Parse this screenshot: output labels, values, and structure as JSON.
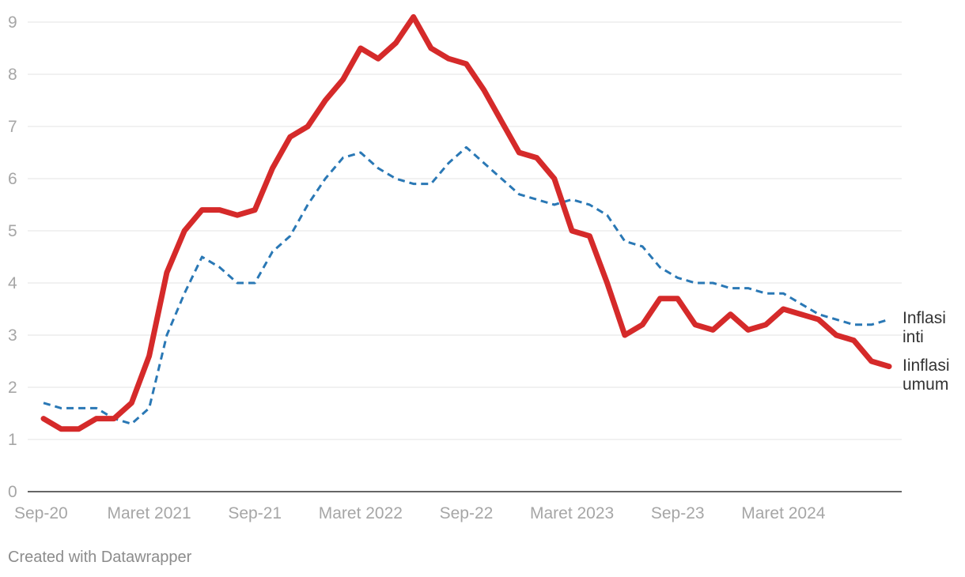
{
  "chart_data": {
    "type": "line",
    "title": "",
    "xlabel": "",
    "ylabel": "",
    "ylim": [
      0,
      9
    ],
    "y_ticks": [
      0,
      1,
      2,
      3,
      4,
      5,
      6,
      7,
      8,
      9
    ],
    "x_tick_labels": [
      {
        "index": 0,
        "label": "Sep-20"
      },
      {
        "index": 6,
        "label": "Maret 2021"
      },
      {
        "index": 12,
        "label": "Sep-21"
      },
      {
        "index": 18,
        "label": "Maret 2022"
      },
      {
        "index": 24,
        "label": "Sep-22"
      },
      {
        "index": 30,
        "label": "Maret 2023"
      },
      {
        "index": 36,
        "label": "Sep-23"
      },
      {
        "index": 42,
        "label": "Maret 2024"
      }
    ],
    "grid": true,
    "series": [
      {
        "name": "Iinflasi umum",
        "label_lines": [
          "Iinflasi",
          "umum"
        ],
        "color": "#d52a2a",
        "style": "solid",
        "values": [
          1.4,
          1.2,
          1.2,
          1.4,
          1.4,
          1.7,
          2.6,
          4.2,
          5.0,
          5.4,
          5.4,
          5.3,
          5.4,
          6.2,
          6.8,
          7.0,
          7.5,
          7.9,
          8.5,
          8.3,
          8.6,
          9.1,
          8.5,
          8.3,
          8.2,
          7.7,
          7.1,
          6.5,
          6.4,
          6.0,
          5.0,
          4.9,
          4.0,
          3.0,
          3.2,
          3.7,
          3.7,
          3.2,
          3.1,
          3.4,
          3.1,
          3.2,
          3.5,
          3.4,
          3.3,
          3.0,
          2.9,
          2.5,
          2.4
        ]
      },
      {
        "name": "Inflasi inti",
        "label_lines": [
          "Inflasi",
          "inti"
        ],
        "color": "#2a78b5",
        "style": "dashed",
        "values": [
          1.7,
          1.6,
          1.6,
          1.6,
          1.4,
          1.3,
          1.6,
          3.0,
          3.8,
          4.5,
          4.3,
          4.0,
          4.0,
          4.6,
          4.9,
          5.5,
          6.0,
          6.4,
          6.5,
          6.2,
          6.0,
          5.9,
          5.9,
          6.3,
          6.6,
          6.3,
          6.0,
          5.7,
          5.6,
          5.5,
          5.6,
          5.5,
          5.3,
          4.8,
          4.7,
          4.3,
          4.1,
          4.0,
          4.0,
          3.9,
          3.9,
          3.8,
          3.8,
          3.6,
          3.4,
          3.3,
          3.2,
          3.2,
          3.3
        ]
      }
    ]
  },
  "footer": {
    "credit": "Created with Datawrapper"
  }
}
